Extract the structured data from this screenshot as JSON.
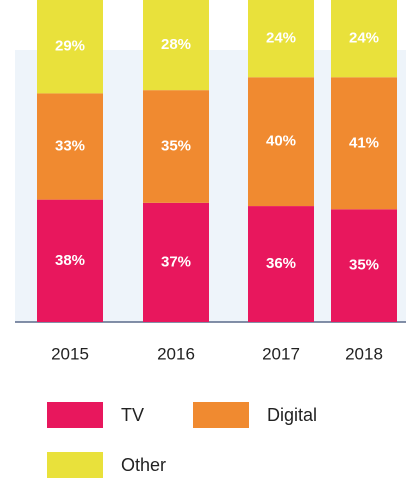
{
  "chart_data": {
    "type": "stacked-bar",
    "categories": [
      "2015",
      "2016",
      "2017",
      "2018"
    ],
    "series": [
      {
        "name": "TV",
        "color": "#e8175d",
        "values": [
          38,
          37,
          36,
          35
        ],
        "value_labels": [
          "38%",
          "37%",
          "36%",
          "35%"
        ]
      },
      {
        "name": "Digital",
        "color": "#f08a30",
        "values": [
          33,
          35,
          40,
          41
        ],
        "value_labels": [
          "33%",
          "35%",
          "40%",
          "41%"
        ]
      },
      {
        "name": "Other",
        "color": "#e9e13b",
        "values": [
          29,
          28,
          24,
          24
        ],
        "value_labels": [
          "29%",
          "28%",
          "24%",
          "24%"
        ]
      }
    ]
  }
}
